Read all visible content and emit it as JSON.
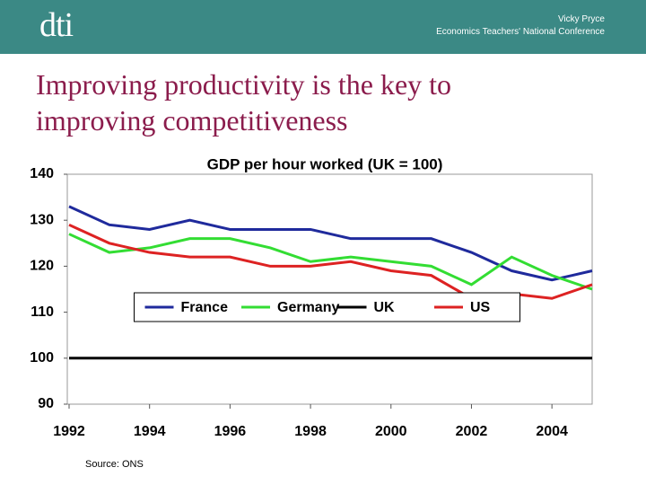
{
  "header": {
    "logo": "dti",
    "author": "Vicky Pryce",
    "event": "Economics Teachers' National Conference"
  },
  "slide_title": "Improving productivity is the key to improving competitiveness",
  "source": "Source: ONS",
  "chart_data": {
    "type": "line",
    "title": "GDP per hour worked (UK = 100)",
    "x": [
      1992,
      1993,
      1994,
      1995,
      1996,
      1997,
      1998,
      1999,
      2000,
      2001,
      2002,
      2003,
      2004,
      2005
    ],
    "xlim": [
      1992,
      2005
    ],
    "xticks": [
      1992,
      1994,
      1996,
      1998,
      2000,
      2002,
      2004
    ],
    "ylim": [
      90,
      140
    ],
    "yticks": [
      90,
      100,
      110,
      120,
      130,
      140
    ],
    "legend_position": "center",
    "series": [
      {
        "name": "France",
        "color": "#1f2a9c",
        "values": [
          133,
          129,
          128,
          130,
          128,
          128,
          128,
          126,
          126,
          126,
          123,
          119,
          117,
          119
        ]
      },
      {
        "name": "Germany",
        "color": "#33dd33",
        "values": [
          127,
          123,
          124,
          126,
          126,
          124,
          121,
          122,
          121,
          120,
          116,
          122,
          118,
          115
        ]
      },
      {
        "name": "UK",
        "color": "#000000",
        "values": [
          100,
          100,
          100,
          100,
          100,
          100,
          100,
          100,
          100,
          100,
          100,
          100,
          100,
          100
        ]
      },
      {
        "name": "US",
        "color": "#dd2222",
        "values": [
          129,
          125,
          123,
          122,
          122,
          120,
          120,
          121,
          119,
          118,
          113,
          114,
          113,
          116
        ]
      }
    ]
  }
}
